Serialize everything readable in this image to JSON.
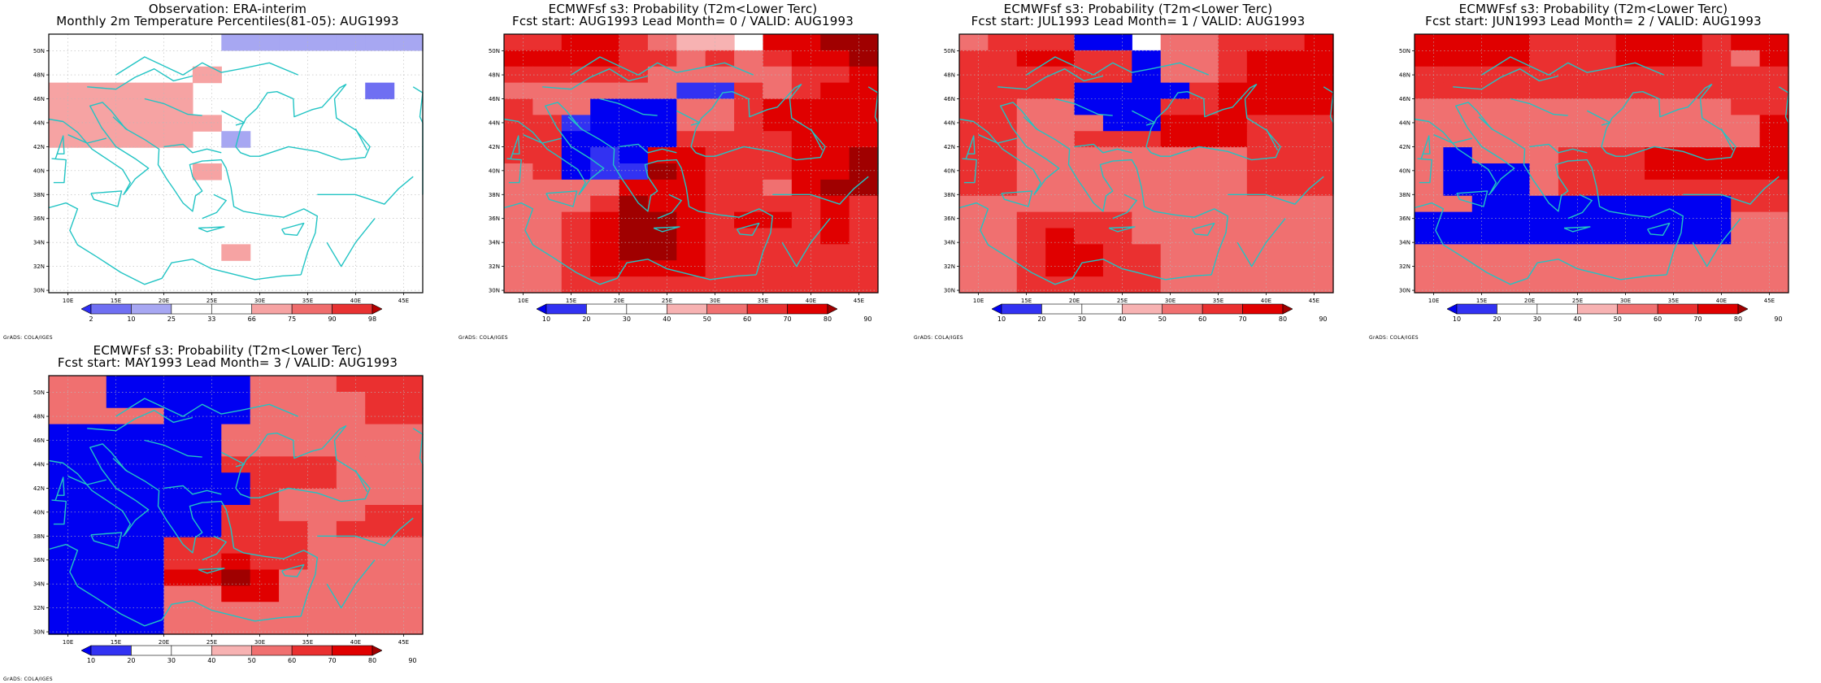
{
  "credit": "GrADS: COLA/IGES",
  "x_ticks": [
    "10E",
    "15E",
    "20E",
    "25E",
    "30E",
    "35E",
    "40E",
    "45E"
  ],
  "y_ticks": [
    "30N",
    "32N",
    "34N",
    "36N",
    "38N",
    "40N",
    "42N",
    "44N",
    "46N",
    "48N",
    "50N"
  ],
  "colors": {
    "coast": "#22c4c4",
    "obs_palette": [
      "#2e2ef5",
      "#6f6ff2",
      "#a7a7f2",
      "#ffffff",
      "#ffffff",
      "#f6a3a3",
      "#ef6c6c",
      "#e83232",
      "#b50000"
    ],
    "prob_palette": [
      "#0000f2",
      "#3232f2",
      "#ffffff",
      "#ffffff",
      "#f7b2b2",
      "#f07070",
      "#ea3030",
      "#e00000",
      "#a00000"
    ]
  },
  "panels": [
    {
      "id": "observation",
      "title1": "Observation: ERA-interim",
      "title2": "Monthly 2m Temperature Percentiles(81-05): AUG1993",
      "colorbar_labels": [
        "2",
        "10",
        "25",
        "33",
        "66",
        "75",
        "90",
        "98"
      ],
      "grid_rows_north_to_south": [
        "3333332222222",
        "4444434444444",
        "4444454444444",
        "5555544444414",
        "5555544444444",
        "5555554444444",
        "5555542444444",
        "4444444444444",
        "4444454444444",
        "4444444444444",
        "4444444444444",
        "3333333333333",
        "3333333333333",
        "4444445444444",
        "4444444444444",
        "4444444444444"
      ],
      "palette": "obs"
    },
    {
      "id": "lead0",
      "title1": "ECMWFsf s3: Probability (T2m<Lower Terc)",
      "title2": "Fcst start: AUG1993   Lead Month= 0 / VALID: AUG1993",
      "colorbar_labels": [
        "10",
        "20",
        "30",
        "40",
        "50",
        "60",
        "70",
        "80",
        "90"
      ],
      "grid_rows_north_to_south": [
        "6677654437788",
        "7777665656778",
        "6666655555667",
        "5555551165677",
        "6550005567777",
        "6610005567777",
        "6600006666777",
        "6601077666778",
        "5601187666778",
        "5555777665788",
        "5556877666676",
        "5567887677676",
        "5567887666676",
        "5567887666666",
        "5567777666666",
        "5566666666666"
      ],
      "palette": "prob"
    },
    {
      "id": "lead1",
      "title1": "ECMWFsf s3: Probability (T2m<Lower Terc)",
      "title2": "Fcst start: JUL1993   Lead Month= 1 / VALID: AUG1993",
      "colorbar_labels": [
        "10",
        "20",
        "30",
        "40",
        "50",
        "60",
        "70",
        "80",
        "90"
      ],
      "grid_rows_north_to_south": [
        "5666003556667",
        "6677660556777",
        "6666660556777",
        "6666000067777",
        "6655000667777",
        "6655500777666",
        "6655666777666",
        "6655555555666",
        "6655555555666",
        "6655555555666",
        "5555555555555",
        "5566665555555",
        "5567665555555",
        "5567766555555",
        "5567766555555",
        "5566666555555"
      ],
      "palette": "prob"
    },
    {
      "id": "lead2",
      "title1": "ECMWFsf s3: Probability (T2m<Lower Terc)",
      "title2": "Fcst start: JUN1993   Lead Month= 2 / VALID: AUG1993",
      "colorbar_labels": [
        "10",
        "20",
        "30",
        "40",
        "50",
        "60",
        "70",
        "80",
        "90"
      ],
      "grid_rows_north_to_south": [
        "7777666777677",
        "7777666777657",
        "6666666666666",
        "6666666666666",
        "5555555555566",
        "5555555555557",
        "5555555555557",
        "5055566677777",
        "5000566677777",
        "5000566666666",
        "5500000000066",
        "0000000000055",
        "0000000000055",
        "5555555555555",
        "5555555555555",
        "5555555555555"
      ],
      "palette": "prob"
    },
    {
      "id": "lead3",
      "title1": "ECMWFsf s3: Probability (T2m<Lower Terc)",
      "title2": "Fcst start: MAY1993   Lead Month= 3 / VALID: AUG1993",
      "colorbar_labels": [
        "10",
        "20",
        "30",
        "40",
        "50",
        "60",
        "70",
        "80",
        "90"
      ],
      "grid_rows_north_to_south": [
        "5500000555666",
        "5500000555566",
        "5555000555566",
        "0000005555555",
        "0000005555555",
        "0000006666555",
        "0000000666555",
        "0000000655555",
        "0000006655566",
        "0000006665666",
        "0000666665555",
        "0000667665555",
        "0000778755555",
        "0000557755555",
        "0000555555555",
        "0000555555555"
      ],
      "palette": "prob"
    }
  ]
}
